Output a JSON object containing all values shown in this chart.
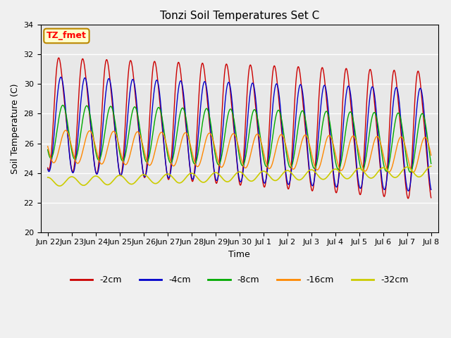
{
  "title": "Tonzi Soil Temperatures Set C",
  "xlabel": "Time",
  "ylabel": "Soil Temperature (C)",
  "ylim": [
    20,
    34
  ],
  "annotation_text": "TZ_fmet",
  "annotation_box_color": "#ffffcc",
  "annotation_border_color": "#bb8800",
  "fig_facecolor": "#f0f0f0",
  "plot_bg_color": "#e8e8e8",
  "series": [
    {
      "label": "-2cm",
      "color": "#cc0000"
    },
    {
      "label": "-4cm",
      "color": "#0000cc"
    },
    {
      "label": "-8cm",
      "color": "#00aa00"
    },
    {
      "label": "-16cm",
      "color": "#ff8800"
    },
    {
      "label": "-32cm",
      "color": "#cccc00"
    }
  ],
  "tick_labels": [
    "Jun 22",
    "Jun 23",
    "Jun 24",
    "Jun 25",
    "Jun 26",
    "Jun 27",
    "Jun 28",
    "Jun 29",
    "Jun 30",
    "Jul 1",
    "Jul 2",
    "Jul 3",
    "Jul 4",
    "Jul 5",
    "Jul 6",
    "Jul 7",
    "Jul 8"
  ],
  "tick_positions": [
    0,
    1,
    2,
    3,
    4,
    5,
    6,
    7,
    8,
    9,
    10,
    11,
    12,
    13,
    14,
    15,
    16
  ],
  "yticks": [
    20,
    22,
    24,
    26,
    28,
    30,
    32,
    34
  ]
}
